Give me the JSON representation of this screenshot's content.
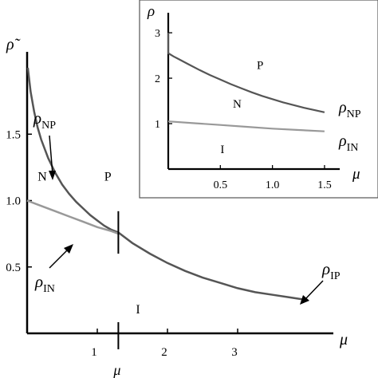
{
  "chart_data": [
    {
      "type": "line",
      "ylabel_sym": "ρ̃",
      "xlabel_sym": "μ",
      "xlim": [
        0,
        4.25
      ],
      "ylim": [
        0,
        2.0
      ],
      "x_ticks": [
        1,
        2,
        3
      ],
      "x_tick_labels": [
        "1",
        "2",
        "3"
      ],
      "y_ticks": [
        0.5,
        1.0,
        1.5
      ],
      "y_tick_labels": [
        "0.5",
        "1.0",
        "1.5"
      ],
      "marker_x": 1.3,
      "marker_label": "μ",
      "region_labels": [
        {
          "text": "N",
          "x": 0.15,
          "y": 1.15
        },
        {
          "text": "P",
          "x": 1.1,
          "y": 1.15
        },
        {
          "text": "I",
          "x": 1.55,
          "y": 0.15
        }
      ],
      "series": [
        {
          "name": "NP",
          "label_main": "ρ",
          "label_sub": "NP",
          "color": "#555555",
          "x": [
            0.01,
            0.05,
            0.1,
            0.15,
            0.2,
            0.3,
            0.4,
            0.5,
            0.6,
            0.7,
            0.8,
            0.9,
            1.0,
            1.1,
            1.2,
            1.3
          ],
          "y": [
            2.0,
            1.82,
            1.67,
            1.55,
            1.46,
            1.32,
            1.21,
            1.12,
            1.05,
            0.99,
            0.94,
            0.89,
            0.85,
            0.81,
            0.78,
            0.76
          ]
        },
        {
          "name": "IN",
          "label_main": "ρ",
          "label_sub": "IN",
          "color": "#999999",
          "x": [
            0.0,
            0.2,
            0.4,
            0.6,
            0.8,
            1.0,
            1.2,
            1.3
          ],
          "y": [
            1.0,
            0.96,
            0.92,
            0.88,
            0.84,
            0.8,
            0.77,
            0.75
          ]
        },
        {
          "name": "IP",
          "label_main": "ρ",
          "label_sub": "IP",
          "color": "#555555",
          "x": [
            1.3,
            1.5,
            1.75,
            2.0,
            2.25,
            2.5,
            2.75,
            3.0,
            3.25,
            3.5,
            3.75,
            4.0
          ],
          "y": [
            0.76,
            0.68,
            0.6,
            0.53,
            0.47,
            0.42,
            0.38,
            0.34,
            0.31,
            0.29,
            0.27,
            0.25
          ]
        }
      ]
    },
    {
      "type": "line",
      "ylabel_sym": "ρ",
      "xlabel_sym": "μ",
      "xlim": [
        0,
        1.6
      ],
      "ylim": [
        0,
        3.3
      ],
      "x_ticks": [
        0.5,
        1.0,
        1.5
      ],
      "x_tick_labels": [
        "0.5",
        "1.0",
        "1.5"
      ],
      "y_ticks": [
        1,
        2,
        3
      ],
      "y_tick_labels": [
        "1",
        "2",
        "3"
      ],
      "region_labels": [
        {
          "text": "P",
          "x": 0.85,
          "y": 2.2
        },
        {
          "text": "N",
          "x": 0.62,
          "y": 1.35
        },
        {
          "text": "I",
          "x": 0.5,
          "y": 0.35
        }
      ],
      "series": [
        {
          "name": "NP",
          "label_main": "ρ",
          "label_sub": "NP",
          "color": "#555555",
          "x": [
            0.0,
            0.0,
            0.05,
            0.1,
            0.2,
            0.3,
            0.4,
            0.5,
            0.6,
            0.7,
            0.8,
            0.9,
            1.0,
            1.1,
            1.2,
            1.3,
            1.4,
            1.5
          ],
          "y": [
            3.0,
            2.55,
            2.48,
            2.42,
            2.3,
            2.18,
            2.07,
            1.97,
            1.87,
            1.78,
            1.69,
            1.61,
            1.54,
            1.47,
            1.41,
            1.35,
            1.3,
            1.25
          ]
        },
        {
          "name": "IN",
          "label_main": "ρ",
          "label_sub": "IN",
          "color": "#999999",
          "x": [
            0.0,
            0.25,
            0.5,
            0.75,
            1.0,
            1.25,
            1.5
          ],
          "y": [
            1.05,
            1.01,
            0.97,
            0.93,
            0.89,
            0.86,
            0.83
          ]
        }
      ]
    }
  ]
}
